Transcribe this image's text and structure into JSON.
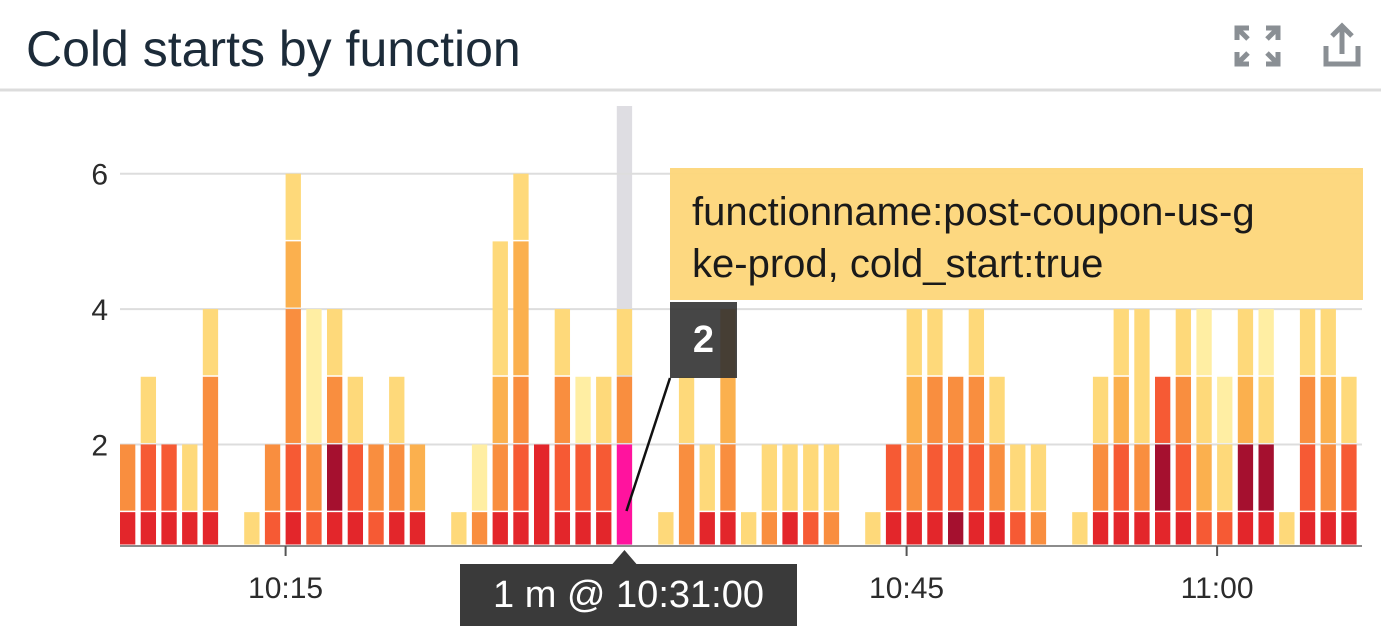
{
  "chart_data": {
    "type": "stacked_bar",
    "title": "Cold starts by function",
    "crosshair_label": "1 m @ 10:31:00",
    "categories": [
      null,
      null,
      null,
      null,
      null,
      null,
      null,
      null,
      "10:15",
      null,
      null,
      null,
      null,
      null,
      null,
      null,
      null,
      null,
      null,
      null,
      null,
      null,
      null,
      null,
      null,
      null,
      null,
      null,
      null,
      null,
      null,
      null,
      null,
      null,
      null,
      null,
      null,
      null,
      "10:45",
      null,
      null,
      null,
      null,
      null,
      null,
      null,
      null,
      null,
      null,
      null,
      null,
      null,
      null,
      "11:00",
      null,
      null,
      null,
      null,
      null,
      null
    ],
    "ylim": [
      0.5,
      7
    ],
    "yticks": [
      2,
      4,
      6
    ],
    "grid": true,
    "series": [
      {
        "name": "functionname:post-coupon-us-gke-prod, cold_start:true",
        "color": "#ff139e",
        "values": [
          null,
          null,
          null,
          null,
          null,
          null,
          null,
          null,
          null,
          null,
          null,
          null,
          null,
          null,
          null,
          null,
          null,
          null,
          null,
          null,
          null,
          null,
          null,
          null,
          2,
          null,
          null,
          null,
          null,
          null,
          null,
          null,
          null,
          null,
          null,
          null,
          null,
          null,
          null,
          null,
          null,
          null,
          null,
          null,
          null,
          null,
          null,
          null,
          null,
          null,
          null,
          null,
          null,
          null,
          null,
          null,
          null,
          null,
          null,
          null
        ]
      },
      {
        "color": "#e3262b",
        "values": [
          1,
          1,
          1,
          1,
          1,
          null,
          null,
          null,
          1,
          null,
          1,
          1,
          null,
          1,
          1,
          null,
          null,
          null,
          1,
          1,
          2,
          1,
          1,
          1,
          null,
          null,
          null,
          null,
          1,
          1,
          null,
          null,
          1,
          null,
          null,
          null,
          null,
          1,
          1,
          1,
          null,
          1,
          1,
          null,
          null,
          null,
          null,
          1,
          1,
          1,
          1,
          1,
          null,
          null,
          1,
          1,
          null,
          1,
          1,
          1
        ]
      },
      {
        "color": "#a5102f",
        "values": [
          null,
          null,
          null,
          null,
          null,
          null,
          null,
          null,
          null,
          null,
          1,
          null,
          null,
          null,
          null,
          null,
          null,
          null,
          null,
          null,
          null,
          null,
          null,
          null,
          null,
          null,
          null,
          null,
          null,
          null,
          null,
          null,
          null,
          null,
          null,
          null,
          null,
          null,
          null,
          null,
          1,
          null,
          null,
          null,
          null,
          null,
          null,
          null,
          null,
          null,
          1,
          null,
          null,
          null,
          1,
          1,
          null,
          null,
          null,
          null
        ]
      },
      {
        "color": "#f65a34",
        "values": [
          null,
          1,
          1,
          null,
          null,
          null,
          null,
          1,
          1,
          1,
          null,
          1,
          1,
          null,
          null,
          null,
          null,
          null,
          null,
          1,
          null,
          1,
          1,
          1,
          null,
          null,
          null,
          null,
          null,
          null,
          null,
          null,
          null,
          1,
          null,
          null,
          null,
          1,
          null,
          1,
          1,
          1,
          null,
          1,
          null,
          null,
          null,
          null,
          1,
          null,
          1,
          1,
          1,
          1,
          null,
          null,
          null,
          1,
          null,
          1
        ]
      },
      {
        "color": "#f98e3f",
        "values": [
          1,
          null,
          null,
          null,
          2,
          null,
          null,
          1,
          2,
          1,
          1,
          null,
          1,
          1,
          null,
          null,
          null,
          1,
          1,
          1,
          null,
          1,
          null,
          null,
          1,
          null,
          null,
          2,
          null,
          1,
          null,
          1,
          null,
          null,
          1,
          null,
          null,
          null,
          1,
          1,
          1,
          1,
          1,
          null,
          1,
          null,
          null,
          1,
          null,
          1,
          null,
          1,
          null,
          null,
          null,
          null,
          null,
          1,
          1,
          null
        ]
      },
      {
        "color": "#fbb04e",
        "values": [
          null,
          null,
          null,
          null,
          null,
          null,
          null,
          null,
          1,
          null,
          null,
          null,
          null,
          null,
          1,
          null,
          null,
          null,
          1,
          2,
          null,
          null,
          null,
          null,
          null,
          null,
          null,
          null,
          null,
          2,
          null,
          null,
          null,
          null,
          null,
          null,
          null,
          null,
          1,
          null,
          null,
          null,
          null,
          null,
          null,
          null,
          null,
          null,
          1,
          null,
          null,
          null,
          1,
          null,
          1,
          null,
          null,
          null,
          1,
          null
        ]
      },
      {
        "color": "#fed97a",
        "values": [
          null,
          1,
          null,
          1,
          1,
          null,
          1,
          null,
          1,
          null,
          1,
          1,
          null,
          1,
          null,
          null,
          1,
          null,
          2,
          1,
          null,
          1,
          null,
          1,
          1,
          null,
          1,
          1,
          1,
          null,
          1,
          1,
          1,
          1,
          1,
          null,
          1,
          null,
          1,
          1,
          null,
          1,
          1,
          1,
          1,
          null,
          1,
          1,
          1,
          2,
          null,
          1,
          1,
          1,
          1,
          1,
          1,
          1,
          1,
          1
        ]
      },
      {
        "color": "#ffeea3",
        "values": [
          null,
          null,
          null,
          null,
          null,
          null,
          null,
          null,
          null,
          2,
          null,
          null,
          null,
          null,
          null,
          null,
          null,
          1,
          null,
          null,
          null,
          null,
          1,
          null,
          null,
          null,
          null,
          null,
          null,
          null,
          null,
          null,
          null,
          null,
          null,
          null,
          null,
          null,
          null,
          null,
          null,
          null,
          null,
          null,
          null,
          null,
          null,
          null,
          null,
          null,
          null,
          null,
          1,
          1,
          null,
          1,
          null,
          null,
          null,
          null
        ]
      }
    ]
  }
}
